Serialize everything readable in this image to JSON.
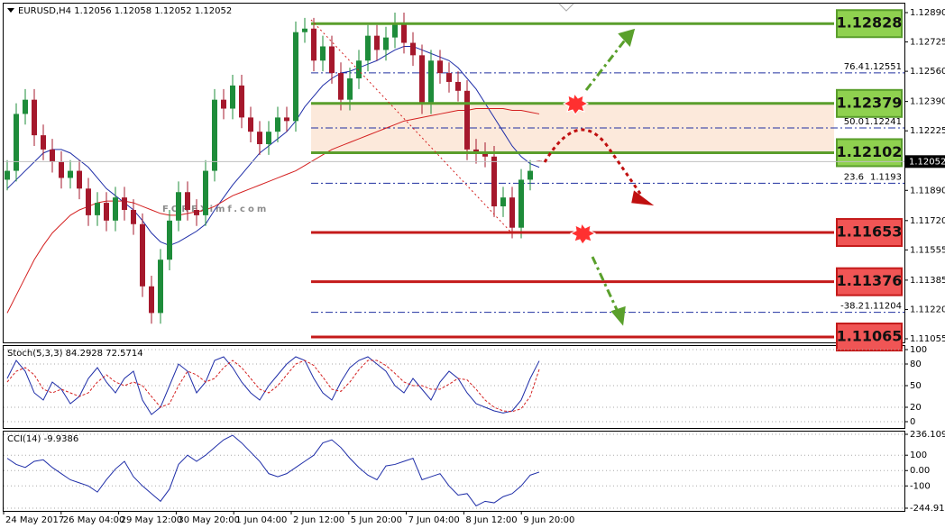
{
  "chart_data": [
    {
      "type": "candlestick",
      "title": "EURUSD,H4",
      "open": [
        1.1195,
        1.12,
        1.1232,
        1.124,
        1.122,
        1.1212,
        1.1205,
        1.1196,
        1.12,
        1.119,
        1.1175,
        1.1182,
        1.1172,
        1.1185,
        1.1178,
        1.117,
        1.1135,
        1.112,
        1.115,
        1.1172,
        1.1188,
        1.1178,
        1.1175,
        1.12,
        1.124,
        1.1235,
        1.1248,
        1.123,
        1.1222,
        1.1215,
        1.1222,
        1.123,
        1.1228,
        1.1278,
        1.128,
        1.1262,
        1.127,
        1.1255,
        1.124,
        1.1252,
        1.1262,
        1.1276,
        1.1268,
        1.1275,
        1.1283,
        1.1272,
        1.1265,
        1.1238,
        1.1262,
        1.1255,
        1.125,
        1.1245,
        1.1212,
        1.121,
        1.1208,
        1.118,
        1.1185,
        1.1168,
        1.1195,
        1.12056
      ],
      "high": [
        1.1206,
        1.1238,
        1.1246,
        1.1246,
        1.1226,
        1.1218,
        1.1211,
        1.1206,
        1.1206,
        1.1196,
        1.1188,
        1.1188,
        1.1191,
        1.1191,
        1.1184,
        1.1176,
        1.1141,
        1.1156,
        1.1178,
        1.1194,
        1.1194,
        1.1184,
        1.1206,
        1.1246,
        1.1246,
        1.1254,
        1.1254,
        1.1236,
        1.1228,
        1.1228,
        1.1236,
        1.1236,
        1.1284,
        1.1286,
        1.1286,
        1.1276,
        1.1276,
        1.1261,
        1.1258,
        1.1268,
        1.1282,
        1.1282,
        1.1281,
        1.1289,
        1.1289,
        1.1278,
        1.1271,
        1.1268,
        1.1268,
        1.1261,
        1.1256,
        1.1251,
        1.1218,
        1.1216,
        1.1214,
        1.1191,
        1.1191,
        1.1201,
        1.1206,
        1.12058
      ],
      "low": [
        1.1189,
        1.1194,
        1.1226,
        1.1214,
        1.1206,
        1.1199,
        1.119,
        1.119,
        1.1184,
        1.1169,
        1.1169,
        1.1166,
        1.1166,
        1.1172,
        1.1164,
        1.1129,
        1.1114,
        1.1114,
        1.1144,
        1.1166,
        1.1172,
        1.1169,
        1.1169,
        1.1194,
        1.1229,
        1.1229,
        1.1224,
        1.1216,
        1.1209,
        1.1209,
        1.1216,
        1.1222,
        1.1222,
        1.1272,
        1.1256,
        1.1256,
        1.1249,
        1.1234,
        1.1234,
        1.1246,
        1.1256,
        1.1262,
        1.1262,
        1.1269,
        1.1266,
        1.1259,
        1.1232,
        1.1232,
        1.1249,
        1.1244,
        1.1239,
        1.1206,
        1.1204,
        1.1202,
        1.1174,
        1.1174,
        1.1162,
        1.1162,
        1.1189,
        1.12052
      ],
      "close": [
        1.12,
        1.1232,
        1.124,
        1.122,
        1.1212,
        1.1205,
        1.1196,
        1.12,
        1.119,
        1.1175,
        1.1182,
        1.1172,
        1.1185,
        1.1178,
        1.117,
        1.1135,
        1.112,
        1.115,
        1.1172,
        1.1188,
        1.1178,
        1.1175,
        1.12,
        1.124,
        1.1235,
        1.1248,
        1.123,
        1.1222,
        1.1215,
        1.1222,
        1.123,
        1.1228,
        1.1278,
        1.128,
        1.1262,
        1.127,
        1.1255,
        1.124,
        1.1252,
        1.1262,
        1.1276,
        1.1268,
        1.1275,
        1.1283,
        1.1272,
        1.1265,
        1.1238,
        1.1262,
        1.1255,
        1.125,
        1.1245,
        1.1212,
        1.121,
        1.1208,
        1.118,
        1.1185,
        1.1168,
        1.1195,
        1.12,
        1.12052
      ],
      "up_color": "#1e8c3a",
      "down_color": "#a5182c",
      "moving_averages": [
        {
          "color": "#1f2ea8",
          "values": [
            1.119,
            1.1195,
            1.12,
            1.1205,
            1.121,
            1.1212,
            1.1212,
            1.121,
            1.1206,
            1.1202,
            1.1196,
            1.119,
            1.1186,
            1.1182,
            1.1178,
            1.1172,
            1.1165,
            1.116,
            1.1158,
            1.116,
            1.1163,
            1.1166,
            1.117,
            1.1178,
            1.1185,
            1.1192,
            1.1198,
            1.1204,
            1.121,
            1.1214,
            1.1218,
            1.1222,
            1.1228,
            1.1236,
            1.1242,
            1.1248,
            1.1252,
            1.1255,
            1.1256,
            1.1258,
            1.126,
            1.1262,
            1.1265,
            1.1268,
            1.127,
            1.127,
            1.1268,
            1.1266,
            1.1264,
            1.1262,
            1.1258,
            1.1252,
            1.1246,
            1.1238,
            1.123,
            1.1222,
            1.1214,
            1.1208,
            1.1204,
            1.1202
          ]
        },
        {
          "color": "#d42020",
          "values": [
            1.112,
            1.113,
            1.114,
            1.115,
            1.1158,
            1.1165,
            1.117,
            1.1175,
            1.1178,
            1.118,
            1.1182,
            1.1183,
            1.1183,
            1.1183,
            1.1182,
            1.118,
            1.1178,
            1.1176,
            1.1175,
            1.1175,
            1.1176,
            1.1177,
            1.1178,
            1.118,
            1.1183,
            1.1186,
            1.1188,
            1.119,
            1.1192,
            1.1194,
            1.1196,
            1.1198,
            1.12,
            1.1203,
            1.1206,
            1.1209,
            1.1212,
            1.1214,
            1.1216,
            1.1218,
            1.122,
            1.1222,
            1.1224,
            1.1226,
            1.1228,
            1.1229,
            1.123,
            1.1231,
            1.1232,
            1.1233,
            1.1234,
            1.1234,
            1.1235,
            1.1235,
            1.1235,
            1.1235,
            1.1234,
            1.1234,
            1.1233,
            1.1232
          ]
        }
      ],
      "ylim": [
        1.11055,
        1.1289
      ],
      "yticks": [
        {
          "value": 1.1289,
          "label": "1.12890"
        },
        1.12725,
        {
          "value": 1.1256,
          "label": "1.12560"
        },
        {
          "value": 1.1239,
          "label": "1.12390"
        },
        1.12225,
        {
          "value": 1.1189,
          "label": "1.11890"
        },
        {
          "value": 1.1172,
          "label": "1.11720"
        },
        1.11555,
        1.11385,
        {
          "value": 1.1122,
          "label": "1.11220"
        },
        1.11055
      ],
      "levels": [
        {
          "value": 1.12828,
          "color": "#5a9e2c",
          "fill": "#8fd14f"
        },
        {
          "value": 1.12379,
          "color": "#5a9e2c",
          "fill": "#8fd14f"
        },
        {
          "value": 1.12102,
          "color": "#5a9e2c",
          "fill": "#8fd14f"
        },
        {
          "value": 1.11653,
          "color": "#c41a1a",
          "fill": "#f05555"
        },
        {
          "value": 1.11376,
          "color": "#c41a1a",
          "fill": "#f05555"
        },
        {
          "value": 1.11065,
          "color": "#c41a1a",
          "fill": "#f05555"
        }
      ],
      "fibonacci": [
        {
          "label": "76.4",
          "value": 1.12551
        },
        {
          "label": "50.0",
          "value": 1.12241
        },
        {
          "label": "23.6",
          "value": 1.1193
        },
        {
          "label": "-38.2",
          "value": 1.11204
        }
      ],
      "x_labels": [
        "24 May 2017",
        "26 May 04:00",
        "29 May 12:00",
        "30 May 20:00",
        "1 Jun 04:00",
        "2 Jun 12:00",
        "5 Jun 20:00",
        "7 Jun 04:00",
        "8 Jun 12:00",
        "9 Jun 20:00"
      ],
      "watermark": "FOREXimf.com"
    },
    {
      "type": "line",
      "title": "Stoch(5,3,3)",
      "series": [
        {
          "color": "#1f2ea8",
          "dashed": false,
          "values": [
            60,
            85,
            70,
            40,
            30,
            55,
            45,
            25,
            35,
            60,
            75,
            55,
            40,
            60,
            70,
            30,
            10,
            20,
            50,
            80,
            70,
            40,
            55,
            85,
            90,
            75,
            55,
            40,
            30,
            50,
            65,
            80,
            90,
            85,
            60,
            40,
            30,
            55,
            75,
            85,
            90,
            80,
            70,
            50,
            40,
            60,
            45,
            30,
            55,
            70,
            60,
            40,
            25,
            20,
            15,
            12,
            15,
            30,
            60,
            84.2928
          ]
        },
        {
          "color": "#d42020",
          "dashed": true,
          "values": [
            55,
            70,
            75,
            65,
            45,
            40,
            45,
            40,
            35,
            40,
            55,
            65,
            55,
            50,
            55,
            50,
            35,
            20,
            25,
            50,
            70,
            65,
            55,
            60,
            75,
            85,
            75,
            60,
            45,
            40,
            50,
            65,
            80,
            85,
            78,
            62,
            45,
            42,
            55,
            72,
            85,
            85,
            78,
            67,
            55,
            50,
            50,
            45,
            45,
            52,
            60,
            58,
            45,
            30,
            20,
            15,
            14,
            18,
            35,
            72.5714
          ]
        }
      ],
      "ylim": [
        0,
        100
      ],
      "yticks": [
        100,
        80,
        50,
        20,
        0
      ]
    },
    {
      "type": "line",
      "title": "CCI(14)",
      "series": [
        {
          "color": "#1f2ea8",
          "dashed": false,
          "values": [
            80,
            40,
            20,
            60,
            70,
            20,
            -20,
            -60,
            -80,
            -100,
            -140,
            -60,
            10,
            60,
            -40,
            -100,
            -150,
            -200,
            -120,
            40,
            100,
            60,
            100,
            150,
            200,
            230,
            180,
            120,
            60,
            -20,
            -40,
            -20,
            20,
            60,
            100,
            180,
            200,
            150,
            80,
            20,
            -30,
            -60,
            30,
            40,
            60,
            80,
            -60,
            -40,
            -20,
            -100,
            -160,
            -150,
            -230,
            -200,
            -210,
            -170,
            -150,
            -100,
            -30,
            -9.9386
          ]
        }
      ],
      "ylim": [
        -244.9152,
        236.1094
      ],
      "yticks": [
        236.1094,
        100,
        {
          "value": 0,
          "label": "0.00"
        },
        -100,
        -244.9152
      ]
    }
  ]
}
